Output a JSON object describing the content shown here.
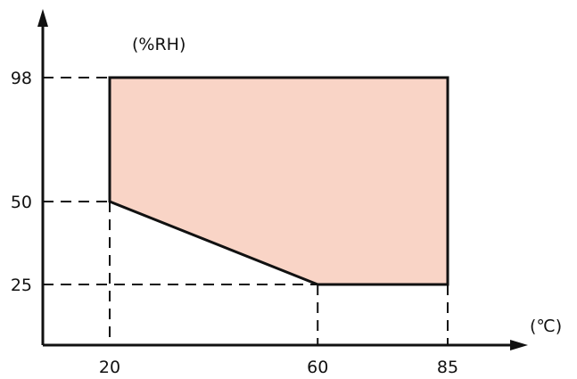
{
  "chart_data": {
    "type": "area",
    "title": "",
    "xlabel": "",
    "ylabel": "",
    "x_unit": "(℃)",
    "y_unit": "(%RH)",
    "x_ticks": [
      20,
      60,
      85
    ],
    "y_ticks": [
      25,
      50,
      98
    ],
    "region": {
      "points": [
        {
          "x": 20,
          "y": 98
        },
        {
          "x": 85,
          "y": 98
        },
        {
          "x": 85,
          "y": 25
        },
        {
          "x": 60,
          "y": 25
        },
        {
          "x": 20,
          "y": 50
        }
      ],
      "fill_color": "#f9d4c6"
    },
    "guides_x": [
      20,
      60,
      85
    ],
    "guides_y": [
      25,
      50,
      98
    ],
    "grid": false,
    "legend": "none"
  }
}
